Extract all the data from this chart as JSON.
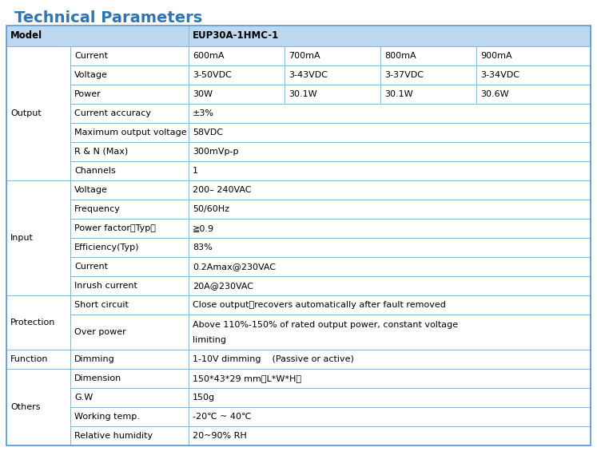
{
  "title": "Technical Parameters",
  "title_color": "#2e75b6",
  "title_fontsize": 14,
  "model_label": "Model",
  "model_value": "EUP30A-1HMC-1",
  "header_bg": "#bdd7ee",
  "border_color": "#8db4cc",
  "font_size": 8.0,
  "groups": [
    {
      "label": "Output",
      "rows": [
        {
          "param": "Current",
          "cols": [
            "600mA",
            "700mA",
            "800mA",
            "900mA"
          ],
          "span": false,
          "tall": false
        },
        {
          "param": "Voltage",
          "cols": [
            "3-50VDC",
            "3-43VDC",
            "3-37VDC",
            "3-34VDC"
          ],
          "span": false,
          "tall": false
        },
        {
          "param": "Power",
          "cols": [
            "30W",
            "30.1W",
            "30.1W",
            "30.6W"
          ],
          "span": false,
          "tall": false
        },
        {
          "param": "Current accuracy",
          "cols": [
            "±3%"
          ],
          "span": true,
          "tall": false
        },
        {
          "param": "Maximum output voltage",
          "cols": [
            "58VDC"
          ],
          "span": true,
          "tall": false
        },
        {
          "param": "R & N (Max)",
          "cols": [
            "300mVp-p"
          ],
          "span": true,
          "tall": false
        },
        {
          "param": "Channels",
          "cols": [
            "1"
          ],
          "span": true,
          "tall": false
        }
      ]
    },
    {
      "label": "Input",
      "rows": [
        {
          "param": "Voltage",
          "cols": [
            "200– 240VAC"
          ],
          "span": true,
          "tall": false
        },
        {
          "param": "Frequency",
          "cols": [
            "50/60Hz"
          ],
          "span": true,
          "tall": false
        },
        {
          "param": "Power factor（Typ）",
          "cols": [
            "≧0.9"
          ],
          "span": true,
          "tall": false
        },
        {
          "param": "Efficiency(Typ)",
          "cols": [
            "83%"
          ],
          "span": true,
          "tall": false
        },
        {
          "param": "Current",
          "cols": [
            "0.2Amax@230VAC"
          ],
          "span": true,
          "tall": false
        },
        {
          "param": "Inrush current",
          "cols": [
            "20A@230VAC"
          ],
          "span": true,
          "tall": false
        }
      ]
    },
    {
      "label": "Protection",
      "rows": [
        {
          "param": "Short circuit",
          "cols": [
            "Close output，recovers automatically after fault removed"
          ],
          "span": true,
          "tall": false
        },
        {
          "param": "Over power",
          "cols": [
            "Above 110%-150% of rated output power, constant voltage",
            "limiting"
          ],
          "span": true,
          "tall": true
        }
      ]
    },
    {
      "label": "Function",
      "rows": [
        {
          "param": "Dimming",
          "cols": [
            "1-10V dimming    (Passive or active)"
          ],
          "span": true,
          "tall": false
        }
      ]
    },
    {
      "label": "Others",
      "rows": [
        {
          "param": "Dimension",
          "cols": [
            "150*43*29 mm（L*W*H）"
          ],
          "span": true,
          "tall": false
        },
        {
          "param": "G.W",
          "cols": [
            "150g"
          ],
          "span": true,
          "tall": false
        },
        {
          "param": "Working temp.",
          "cols": [
            "-20℃ ~ 40℃"
          ],
          "span": true,
          "tall": false
        },
        {
          "param": "Relative humidity",
          "cols": [
            "20~90% RH"
          ],
          "span": true,
          "tall": false
        }
      ]
    }
  ]
}
